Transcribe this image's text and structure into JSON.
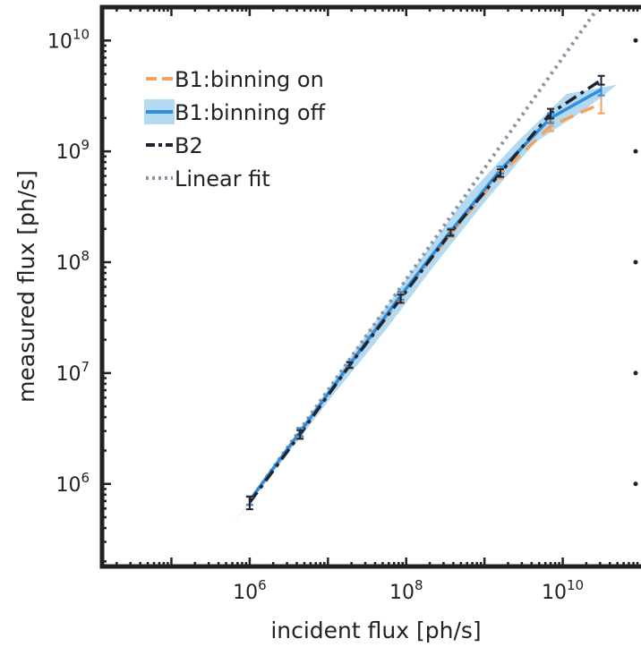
{
  "chart_data": {
    "type": "line",
    "x_scale": "log",
    "y_scale": "log",
    "xlabel": "incident flux [ph/s]",
    "ylabel": "measured flux [ph/s]",
    "xlim": [
      13000,
      100000000000
    ],
    "ylim": [
      180000,
      20000000000
    ],
    "x_ticks": [
      {
        "value": 1000000,
        "base": "10",
        "exp": "6"
      },
      {
        "value": 100000000,
        "base": "10",
        "exp": "8"
      },
      {
        "value": 10000000000,
        "base": "10",
        "exp": "10"
      }
    ],
    "y_ticks": [
      {
        "value": 1000000,
        "base": "10",
        "exp": "6"
      },
      {
        "value": 10000000,
        "base": "10",
        "exp": "7"
      },
      {
        "value": 100000000,
        "base": "10",
        "exp": "8"
      },
      {
        "value": 1000000000,
        "base": "10",
        "exp": "9"
      },
      {
        "value": 10000000000,
        "base": "10",
        "exp": "10"
      }
    ],
    "legend_position": "top-left",
    "grid": false,
    "series": [
      {
        "name": "B1:binning on",
        "color": "#f4a261",
        "style": "dashed",
        "x": [
          1000000,
          4400000,
          19000000,
          85000000,
          370000000,
          1600000000,
          7000000000,
          31000000000
        ],
        "y": [
          700000,
          2900000,
          12000000,
          48000000,
          180000000,
          620000000,
          1700000000,
          2700000000
        ],
        "err": [
          60000,
          250000,
          700000,
          4000000,
          12000000,
          50000000,
          180000000,
          500000000
        ]
      },
      {
        "name": "B1:binning off",
        "color": "#2e8ee0",
        "style": "solid",
        "band_color": "#b4daf2",
        "band_low": [
          450000,
          1700000,
          6500000,
          24000000,
          95000000,
          350000000,
          1200000000,
          2400000000
        ],
        "band_high": [
          1100000,
          5000000,
          22000000,
          95000000,
          390000000,
          1200000000,
          3300000000,
          4000000000
        ],
        "x": [
          1000000,
          4400000,
          19000000,
          85000000,
          370000000,
          1600000000,
          7000000000,
          31000000000
        ],
        "y": [
          710000,
          2950000,
          12000000,
          50000000,
          190000000,
          680000000,
          2000000000,
          3600000000
        ],
        "err": [
          60000,
          250000,
          700000,
          4000000,
          12000000,
          50000000,
          200000000,
          400000000
        ]
      },
      {
        "name": "B2",
        "color": "#1e2530",
        "style": "dashdot",
        "x": [
          1000000,
          4400000,
          19000000,
          85000000,
          370000000,
          1600000000,
          7000000000,
          31000000000
        ],
        "y": [
          680000,
          2800000,
          11800000,
          47000000,
          185000000,
          640000000,
          2200000000,
          4400000000
        ],
        "err": [
          90000,
          250000,
          700000,
          4000000,
          12000000,
          50000000,
          220000000,
          400000000
        ]
      },
      {
        "name": "Linear fit",
        "color": "#8a93a6",
        "style": "dotted",
        "x": [
          1000000,
          40000000000
        ],
        "y": [
          700000,
          28000000000
        ]
      }
    ]
  }
}
